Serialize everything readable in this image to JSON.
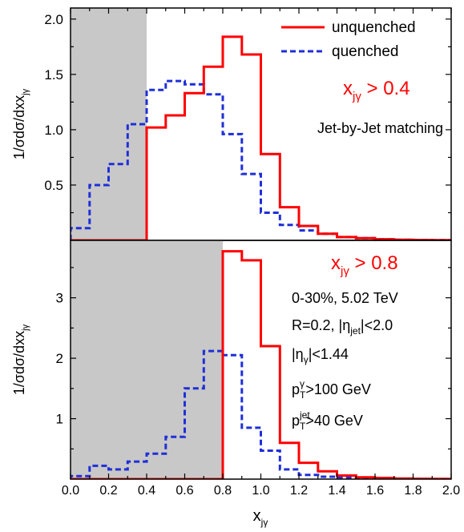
{
  "colors": {
    "unquenched": "#ff0000",
    "quenched": "#1f2fd8",
    "shade": "#c8c8c8",
    "axis": "#000000"
  },
  "xlabel": {
    "main": "x",
    "sub": "jγ"
  },
  "legend": {
    "unquenched": "unquenched",
    "quenched": "quenched",
    "placement": "top-right"
  },
  "chart_data": [
    {
      "type": "line",
      "step": true,
      "ylabel": {
        "main": "1/σdσ/dxx",
        "sub": "jγ"
      },
      "xlim": [
        0,
        2.0
      ],
      "ylim": [
        0,
        2.1
      ],
      "yticks": [
        0.5,
        1.0,
        1.5,
        2.0
      ],
      "ytick_labels": [
        "0.5",
        "1.0",
        "1.5",
        "2.0"
      ],
      "shaded_region": [
        0,
        0.4
      ],
      "cut": {
        "main": "x",
        "sub": "jγ",
        "rest": " > 0.4"
      },
      "annotations": [
        "Jet-by-Jet matching"
      ],
      "bin_edges": [
        0.0,
        0.1,
        0.2,
        0.3,
        0.4,
        0.5,
        0.6,
        0.7,
        0.8,
        0.9,
        1.0,
        1.1,
        1.2,
        1.3,
        1.4,
        1.5,
        1.6,
        1.7,
        1.8,
        1.9,
        2.0
      ],
      "series": [
        {
          "name": "unquenched",
          "values": [
            0,
            0,
            0,
            0,
            1.02,
            1.13,
            1.33,
            1.57,
            1.84,
            1.68,
            0.78,
            0.3,
            0.13,
            0.06,
            0.03,
            0.02,
            0.01,
            0.005,
            0.003,
            0.002
          ]
        },
        {
          "name": "quenched",
          "values": [
            0.11,
            0.5,
            0.69,
            1.05,
            1.36,
            1.44,
            1.41,
            1.32,
            0.96,
            0.6,
            0.25,
            0.14,
            0.09,
            0.06,
            0.03,
            0.02,
            0.01,
            0.005,
            0.003,
            0.002
          ]
        }
      ]
    },
    {
      "type": "line",
      "step": true,
      "ylabel": {
        "main": "1/σdσ/dxx",
        "sub": "jγ"
      },
      "xlim": [
        0,
        2.0
      ],
      "ylim": [
        0,
        3.95
      ],
      "yticks": [
        1,
        2,
        3
      ],
      "ytick_labels": [
        "1",
        "2",
        "3"
      ],
      "xticks": [
        0.0,
        0.2,
        0.4,
        0.6,
        0.8,
        1.0,
        1.2,
        1.4,
        1.6,
        1.8,
        2.0
      ],
      "xtick_labels": [
        "0.0",
        "0.2",
        "0.4",
        "0.6",
        "0.8",
        "1.0",
        "1.2",
        "1.4",
        "1.6",
        "1.8",
        "2.0"
      ],
      "shaded_region": [
        0,
        0.8
      ],
      "cut": {
        "main": "x",
        "sub": "jγ",
        "rest": " > 0.8"
      },
      "annotations": [
        {
          "parts": [
            [
              "n",
              "0-30%, 5.02 TeV"
            ]
          ]
        },
        {
          "parts": [
            [
              "n",
              "R=0.2, |η"
            ],
            [
              "sub",
              "jet"
            ],
            [
              "n",
              "|<2.0"
            ]
          ]
        },
        {
          "parts": [
            [
              "n",
              "|η"
            ],
            [
              "sub",
              "γ"
            ],
            [
              "n",
              "|<1.44"
            ]
          ]
        },
        {
          "parts": [
            [
              "n",
              "p"
            ],
            [
              "subsup",
              "T",
              "γ"
            ],
            [
              "n",
              ">100 GeV"
            ]
          ]
        },
        {
          "parts": [
            [
              "n",
              "p"
            ],
            [
              "subsup",
              "T",
              "jet"
            ],
            [
              "n",
              ">40 GeV"
            ]
          ]
        }
      ],
      "bin_edges": [
        0.0,
        0.1,
        0.2,
        0.3,
        0.4,
        0.5,
        0.6,
        0.7,
        0.8,
        0.9,
        1.0,
        1.1,
        1.2,
        1.3,
        1.4,
        1.5,
        1.6,
        1.7,
        1.8,
        1.9,
        2.0
      ],
      "series": [
        {
          "name": "unquenched",
          "values": [
            0,
            0,
            0,
            0,
            0,
            0,
            0,
            0,
            3.77,
            3.62,
            2.2,
            0.6,
            0.27,
            0.13,
            0.06,
            0.03,
            0.02,
            0.01,
            0.005,
            0.003
          ]
        },
        {
          "name": "quenched",
          "values": [
            0.05,
            0.22,
            0.16,
            0.29,
            0.42,
            0.7,
            1.5,
            2.12,
            2.05,
            0.85,
            0.47,
            0.16,
            0.07,
            0.04,
            0.02,
            0.01,
            0.005,
            0.003,
            0.002,
            0.001
          ]
        }
      ]
    }
  ]
}
